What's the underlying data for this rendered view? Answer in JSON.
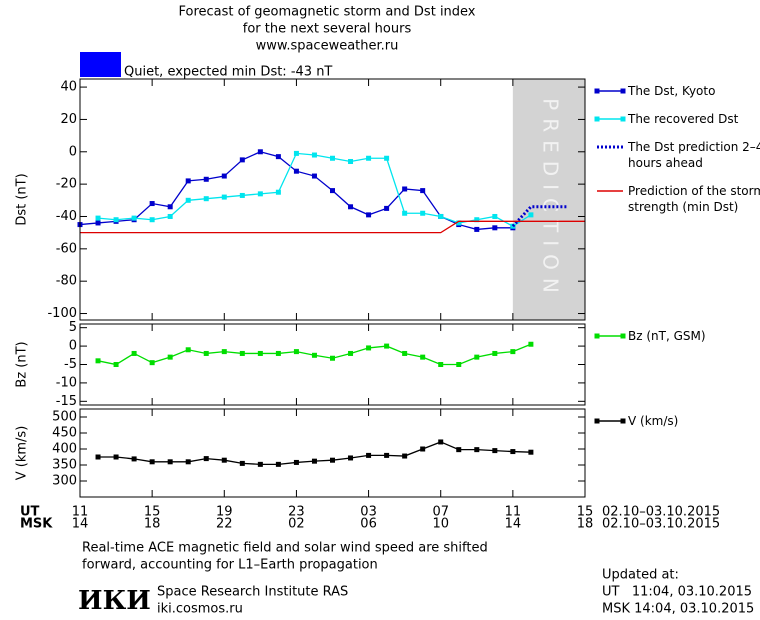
{
  "header": {
    "title_lines": [
      "Forecast of geomagnetic storm and Dst index",
      "for the next several hours",
      "www.spaceweather.ru"
    ],
    "status": {
      "text": "Quiet, expected min Dst: -43 nT",
      "color": "#0000ff"
    }
  },
  "x_axis": {
    "xlim": [
      11,
      39
    ],
    "xticks": [
      11,
      15,
      19,
      23,
      {
        "value": 27,
        "label": "03"
      },
      {
        "value": 31,
        "label": "07"
      },
      {
        "value": 35,
        "label": "11"
      },
      {
        "value": 39,
        "label": "15"
      }
    ],
    "xticks_msk": [
      {
        "value": 11,
        "label": "14"
      },
      {
        "value": 15,
        "label": "18"
      },
      {
        "value": 19,
        "label": "22"
      },
      {
        "value": 23,
        "label": "02"
      },
      {
        "value": 27,
        "label": "06"
      },
      {
        "value": 31,
        "label": "10"
      },
      {
        "value": 35,
        "label": "14"
      },
      {
        "value": 39,
        "label": "18"
      }
    ],
    "row_labels": [
      "UT",
      "MSK"
    ],
    "date_range": "02.10–03.10.2015"
  },
  "chart_data": [
    {
      "type": "line",
      "ylabel": "Dst (nT)",
      "ylim": [
        -104,
        45
      ],
      "yticks": [
        40,
        20,
        0,
        -20,
        -40,
        -60,
        -80,
        -100
      ],
      "prediction_band": {
        "xlim": [
          35,
          39
        ],
        "label": "PREDICTION",
        "color": "#d3d3d3"
      },
      "series": [
        {
          "name": "The Dst, Kyoto",
          "color": "#0000cc",
          "marker": "square",
          "style": "solid",
          "x": [
            11,
            12,
            13,
            14,
            15,
            16,
            17,
            18,
            19,
            20,
            21,
            22,
            23,
            24,
            25,
            26,
            27,
            28,
            29,
            30,
            31,
            32,
            33,
            34,
            35
          ],
          "values": [
            -45,
            -44,
            -43,
            -42,
            -32,
            -34,
            -18,
            -17,
            -15,
            -5,
            0,
            -3,
            -12,
            -15,
            -24,
            -34,
            -39,
            -35,
            -23,
            -24,
            -40,
            -45,
            -48,
            -47,
            -47
          ]
        },
        {
          "name": "The recovered Dst",
          "color": "#00e5ee",
          "marker": "square",
          "style": "solid",
          "x": [
            12,
            13,
            14,
            15,
            16,
            17,
            18,
            19,
            20,
            21,
            22,
            23,
            24,
            25,
            26,
            27,
            28,
            29,
            30,
            31,
            32,
            33,
            34,
            35,
            36
          ],
          "values": [
            -41,
            -42,
            -41,
            -42,
            -40,
            -30,
            -29,
            -28,
            -27,
            -26,
            -25,
            -1,
            -2,
            -4,
            -6,
            -4,
            -4,
            -38,
            -38,
            -40,
            -44,
            -42,
            -40,
            -46,
            -39
          ]
        },
        {
          "name": "The Dst prediction 2–4 hours ahead",
          "color": "#0000cc",
          "marker": "none",
          "style": "dotted",
          "x": [
            35,
            36,
            37,
            38
          ],
          "values": [
            -46,
            -34,
            -34,
            -34
          ]
        },
        {
          "name": "Prediction of the storm strength (min Dst)",
          "color": "#dd0000",
          "marker": "none",
          "style": "solid",
          "x": [
            11,
            31,
            32,
            39
          ],
          "values": [
            -50,
            -50,
            -43,
            -43
          ]
        }
      ]
    },
    {
      "type": "line",
      "ylabel": "Bz (nT)",
      "ylim": [
        -16,
        6
      ],
      "yticks": [
        5,
        0,
        -5,
        -10,
        -15
      ],
      "series": [
        {
          "name": "Bz (nT, GSM)",
          "color": "#00dd00",
          "marker": "square",
          "style": "solid",
          "x": [
            12,
            13,
            14,
            15,
            16,
            17,
            18,
            19,
            20,
            21,
            22,
            23,
            24,
            25,
            26,
            27,
            28,
            29,
            30,
            31,
            32,
            33,
            34,
            35,
            36
          ],
          "values": [
            -4,
            -5,
            -2,
            -4.5,
            -3,
            -1,
            -2,
            -1.5,
            -2,
            -2,
            -2,
            -1.5,
            -2.5,
            -3.3,
            -2,
            -0.5,
            0,
            -2,
            -3,
            -5,
            -5,
            -3,
            -2,
            -1.5,
            0.5
          ]
        }
      ]
    },
    {
      "type": "line",
      "ylabel": "V (km/s)",
      "ylim": [
        250,
        525
      ],
      "yticks": [
        500,
        450,
        400,
        350,
        300
      ],
      "series": [
        {
          "name": "V (km/s)",
          "color": "#000000",
          "marker": "square",
          "style": "solid",
          "x": [
            12,
            13,
            14,
            15,
            16,
            17,
            18,
            19,
            20,
            21,
            22,
            23,
            24,
            25,
            26,
            27,
            28,
            29,
            30,
            31,
            32,
            33,
            34,
            35,
            36
          ],
          "values": [
            375,
            375,
            369,
            360,
            360,
            360,
            370,
            365,
            355,
            352,
            352,
            358,
            362,
            365,
            372,
            380,
            380,
            378,
            400,
            422,
            398,
            398,
            395,
            392,
            390
          ]
        }
      ]
    }
  ],
  "footer": {
    "note_lines": [
      "Real-time ACE magnetic field and solar wind speed are shifted",
      "forward, accounting for L1–Earth propagation"
    ],
    "logo": "ИКИ",
    "institute": "Space Research Institute RAS",
    "site": "iki.cosmos.ru",
    "updated": [
      "Updated at:",
      "UT   11:04, 03.10.2015",
      "MSK 14:04, 03.10.2015"
    ]
  }
}
